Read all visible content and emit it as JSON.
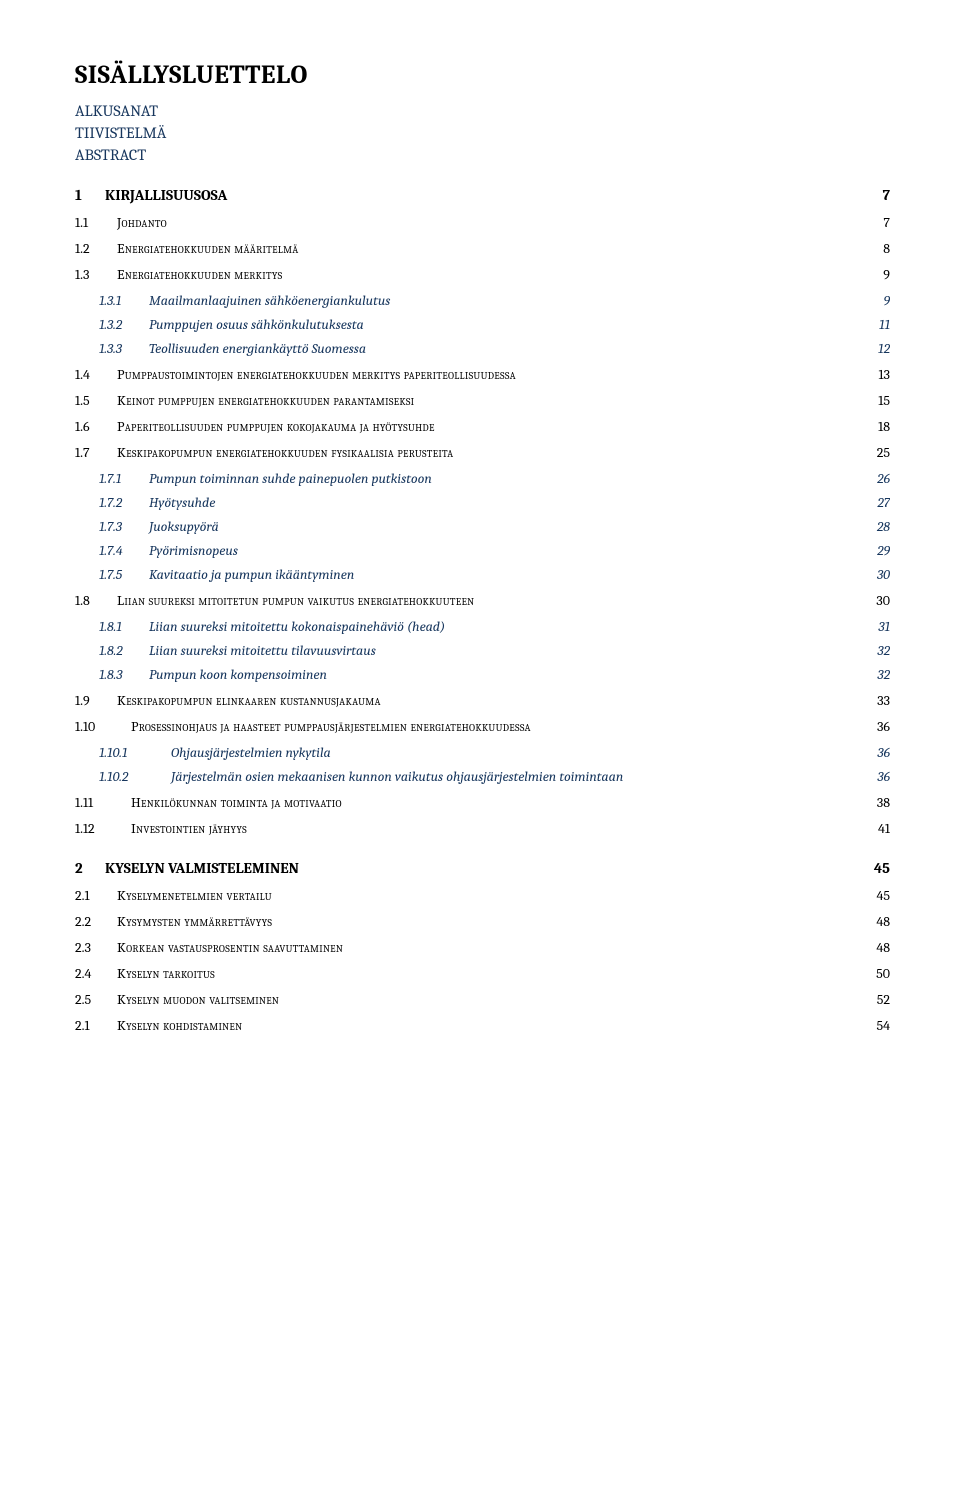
{
  "title": "SISÄLLYSLUETTELO",
  "preamble": [
    "ALKUSANAT",
    "TIIVISTELMÄ",
    "ABSTRACT"
  ],
  "toc": [
    {
      "level": 1,
      "num": "1",
      "label": "KIRJALLISUUSOSA",
      "page": "7"
    },
    {
      "level": 2,
      "num": "1.1",
      "label": "Johdanto",
      "page": "7"
    },
    {
      "level": 2,
      "num": "1.2",
      "label": "Energiatehokkuuden määritelmä",
      "page": "8"
    },
    {
      "level": 2,
      "num": "1.3",
      "label": "Energiatehokkuuden merkitys",
      "page": "9"
    },
    {
      "level": 3,
      "num": "1.3.1",
      "label": "Maailmanlaajuinen sähköenergiankulutus",
      "page": "9"
    },
    {
      "level": 3,
      "num": "1.3.2",
      "label": "Pumppujen osuus sähkönkulutuksesta",
      "page": "11"
    },
    {
      "level": 3,
      "num": "1.3.3",
      "label": "Teollisuuden energiankäyttö Suomessa",
      "page": "12"
    },
    {
      "level": 2,
      "num": "1.4",
      "label": "Pumppaustoimintojen energiatehokkuuden merkitys paperiteollisuudessa",
      "page": "13"
    },
    {
      "level": 2,
      "num": "1.5",
      "label": "Keinot pumppujen energiatehokkuuden parantamiseksi",
      "page": "15"
    },
    {
      "level": 2,
      "num": "1.6",
      "label": "Paperiteollisuuden pumppujen kokojakauma ja hyötysuhde",
      "page": "18"
    },
    {
      "level": 2,
      "num": "1.7",
      "label": "Keskipakopumpun energiatehokkuuden fysikaalisia perusteita",
      "page": "25"
    },
    {
      "level": 3,
      "num": "1.7.1",
      "label": "Pumpun toiminnan suhde painepuolen putkistoon",
      "page": "26"
    },
    {
      "level": 3,
      "num": "1.7.2",
      "label": "Hyötysuhde",
      "page": "27"
    },
    {
      "level": 3,
      "num": "1.7.3",
      "label": "Juoksupyörä",
      "page": "28"
    },
    {
      "level": 3,
      "num": "1.7.4",
      "label": "Pyörimisnopeus",
      "page": "29"
    },
    {
      "level": 3,
      "num": "1.7.5",
      "label": "Kavitaatio ja pumpun ikääntyminen",
      "page": "30"
    },
    {
      "level": 2,
      "num": "1.8",
      "label": "Liian suureksi mitoitetun pumpun vaikutus energiatehokkuuteen",
      "page": "30"
    },
    {
      "level": 3,
      "num": "1.8.1",
      "label": "Liian suureksi mitoitettu kokonaispainehäviö (head)",
      "page": "31"
    },
    {
      "level": 3,
      "num": "1.8.2",
      "label": "Liian suureksi mitoitettu tilavuusvirtaus",
      "page": "32"
    },
    {
      "level": 3,
      "num": "1.8.3",
      "label": "Pumpun koon kompensoiminen",
      "page": "32"
    },
    {
      "level": 2,
      "num": "1.9",
      "label": "Keskipakopumpun elinkaaren kustannusjakauma",
      "page": "33"
    },
    {
      "level": 2,
      "num": "1.10",
      "label": "Prosessinohjaus ja haasteet pumppausjärjestelmien energiatehokkuudessa",
      "page": "36",
      "wide": true
    },
    {
      "level": 3,
      "num": "1.10.1",
      "label": "Ohjausjärjestelmien nykytila",
      "page": "36",
      "wide": true
    },
    {
      "level": 3,
      "num": "1.10.2",
      "label": "Järjestelmän osien mekaanisen kunnon vaikutus  ohjausjärjestelmien toimintaan",
      "page": "36",
      "wide": true
    },
    {
      "level": 2,
      "num": "1.11",
      "label": "Henkilökunnan toiminta ja motivaatio",
      "page": "38",
      "wide": true
    },
    {
      "level": 2,
      "num": "1.12",
      "label": "Investointien jäyhyys",
      "page": "41",
      "wide": true
    },
    {
      "level": 1,
      "num": "2",
      "label": "KYSELYN VALMISTELEMINEN",
      "page": "45"
    },
    {
      "level": 2,
      "num": "2.1",
      "label": "Kyselymenetelmien vertailu",
      "page": "45"
    },
    {
      "level": 2,
      "num": "2.2",
      "label": "Kysymysten ymmärrettävyys",
      "page": "48"
    },
    {
      "level": 2,
      "num": "2.3",
      "label": "Korkean vastausprosentin saavuttaminen",
      "page": "48"
    },
    {
      "level": 2,
      "num": "2.4",
      "label": "Kyselyn tarkoitus",
      "page": "50"
    },
    {
      "level": 2,
      "num": "2.5",
      "label": "Kyselyn muodon valitseminen",
      "page": "52"
    },
    {
      "level": 2,
      "num": "2.1",
      "label": "Kyselyn kohdistaminen",
      "page": "54"
    }
  ]
}
